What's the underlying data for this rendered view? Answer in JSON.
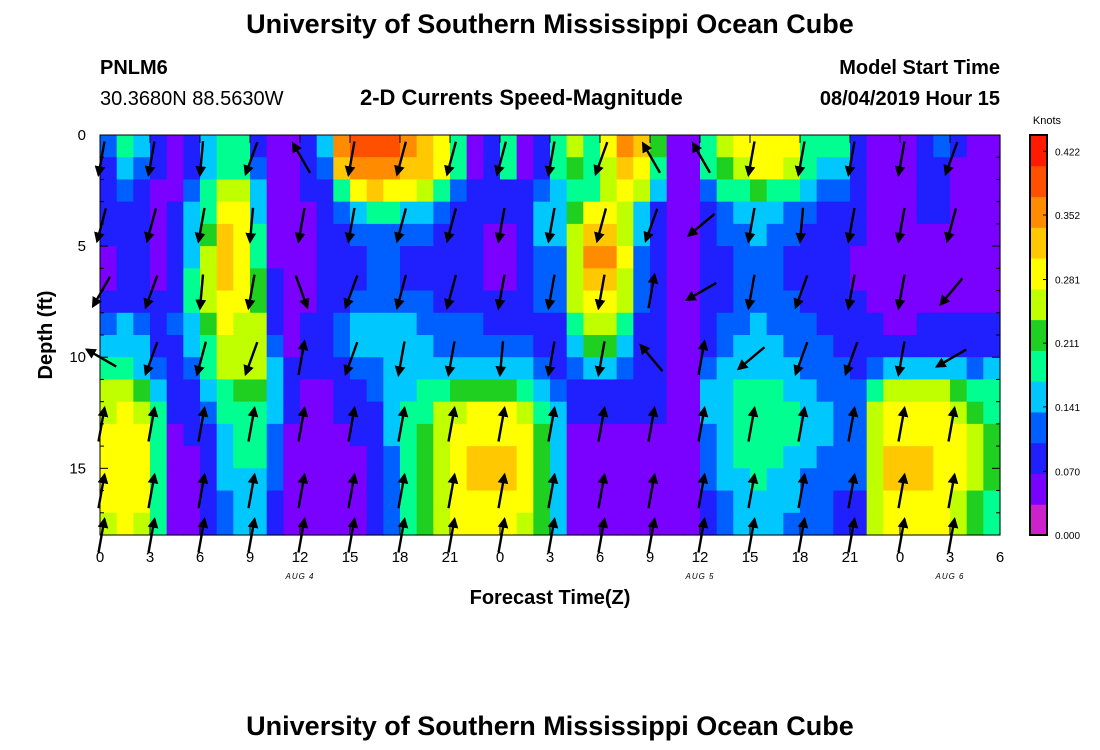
{
  "header": {
    "title": "University of Southern Mississippi Ocean Cube",
    "station_id": "PNLM6",
    "station_coords": "30.3680N 88.5630W",
    "subtitle": "2-D Currents Speed-Magnitude",
    "model_start_label": "Model Start Time",
    "model_start_value": "08/04/2019 Hour 15"
  },
  "footer": {
    "title": "University of Southern Mississippi Ocean Cube"
  },
  "chart_data": {
    "type": "heatmap",
    "title": "2-D Currents Speed-Magnitude",
    "xlabel": "Forecast Time(Z)",
    "ylabel": "Depth (ft)",
    "x_tick_labels": [
      "0",
      "3",
      "6",
      "9",
      "12",
      "15",
      "18",
      "21",
      "0",
      "3",
      "6",
      "9",
      "12",
      "15",
      "18",
      "21",
      "0",
      "3",
      "6"
    ],
    "x_range_hours": [
      0,
      54
    ],
    "date_labels": [
      {
        "text": "AUG 4",
        "hour": 12
      },
      {
        "text": "AUG 5",
        "hour": 36
      },
      {
        "text": "AUG 6",
        "hour": 51
      }
    ],
    "y_ticks": [
      0,
      5,
      10,
      15
    ],
    "y_range_ft": [
      0,
      18
    ],
    "y_inverted": true,
    "colorbar": {
      "unit_label": "Knots",
      "tick_labels": [
        "0.422",
        "0.352",
        "0.281",
        "0.211",
        "0.141",
        "0.070",
        "0.000"
      ],
      "range": [
        0,
        0.44
      ],
      "colors": [
        "#cc22cc",
        "#7a00ff",
        "#2020ff",
        "#0060ff",
        "#00c8ff",
        "#00ff90",
        "#20d020",
        "#c0ff00",
        "#ffff00",
        "#ffc800",
        "#ff8c00",
        "#ff5000",
        "#ff1a00"
      ]
    },
    "depth_rows": [
      0.5,
      1.5,
      2.5,
      3.5,
      4.5,
      5.5,
      6.5,
      7.5,
      8.5,
      9.5,
      10.5,
      11.5,
      12.5,
      13.5,
      14.5,
      15.5,
      16.5,
      17.5
    ],
    "speed_knots": [
      [
        0.12,
        0.2,
        0.14,
        0.08,
        0.05,
        0.1,
        0.14,
        0.18,
        0.18,
        0.1,
        0.06,
        0.04,
        0.1,
        0.15,
        0.35,
        0.38,
        0.4,
        0.4,
        0.36,
        0.33,
        0.3,
        0.2,
        0.06,
        0.08,
        0.2,
        0.06,
        0.1,
        0.2,
        0.25,
        0.2,
        0.3,
        0.35,
        0.33,
        0.22,
        0.06,
        0.05,
        0.2,
        0.25,
        0.28,
        0.3,
        0.3,
        0.3,
        0.2,
        0.18,
        0.18,
        0.1,
        0.06,
        0.05,
        0.05,
        0.1,
        0.12,
        0.07,
        0.06,
        0.05
      ],
      [
        0.1,
        0.15,
        0.12,
        0.07,
        0.05,
        0.1,
        0.15,
        0.18,
        0.18,
        0.12,
        0.06,
        0.04,
        0.08,
        0.12,
        0.32,
        0.35,
        0.36,
        0.36,
        0.33,
        0.31,
        0.28,
        0.18,
        0.06,
        0.07,
        0.18,
        0.06,
        0.1,
        0.18,
        0.22,
        0.18,
        0.26,
        0.32,
        0.3,
        0.2,
        0.06,
        0.05,
        0.18,
        0.23,
        0.26,
        0.28,
        0.28,
        0.27,
        0.18,
        0.16,
        0.16,
        0.09,
        0.06,
        0.05,
        0.05,
        0.09,
        0.1,
        0.06,
        0.05,
        0.05
      ],
      [
        0.08,
        0.12,
        0.1,
        0.06,
        0.06,
        0.12,
        0.17,
        0.25,
        0.25,
        0.14,
        0.05,
        0.04,
        0.07,
        0.1,
        0.2,
        0.3,
        0.32,
        0.3,
        0.28,
        0.25,
        0.2,
        0.12,
        0.07,
        0.08,
        0.1,
        0.07,
        0.12,
        0.15,
        0.2,
        0.2,
        0.24,
        0.28,
        0.24,
        0.16,
        0.06,
        0.05,
        0.12,
        0.18,
        0.2,
        0.22,
        0.2,
        0.18,
        0.14,
        0.13,
        0.12,
        0.08,
        0.06,
        0.05,
        0.05,
        0.08,
        0.08,
        0.06,
        0.05,
        0.05
      ],
      [
        0.07,
        0.1,
        0.09,
        0.06,
        0.07,
        0.14,
        0.2,
        0.3,
        0.3,
        0.16,
        0.05,
        0.04,
        0.06,
        0.08,
        0.12,
        0.16,
        0.18,
        0.18,
        0.16,
        0.14,
        0.12,
        0.09,
        0.07,
        0.07,
        0.07,
        0.08,
        0.14,
        0.14,
        0.22,
        0.28,
        0.3,
        0.24,
        0.16,
        0.1,
        0.06,
        0.05,
        0.09,
        0.13,
        0.14,
        0.16,
        0.14,
        0.12,
        0.11,
        0.1,
        0.09,
        0.07,
        0.06,
        0.05,
        0.05,
        0.07,
        0.07,
        0.05,
        0.05,
        0.05
      ],
      [
        0.07,
        0.09,
        0.08,
        0.06,
        0.08,
        0.15,
        0.22,
        0.32,
        0.3,
        0.18,
        0.05,
        0.04,
        0.06,
        0.07,
        0.09,
        0.12,
        0.13,
        0.13,
        0.12,
        0.11,
        0.1,
        0.08,
        0.07,
        0.06,
        0.06,
        0.08,
        0.14,
        0.14,
        0.25,
        0.32,
        0.32,
        0.26,
        0.14,
        0.09,
        0.06,
        0.05,
        0.08,
        0.11,
        0.12,
        0.14,
        0.12,
        0.11,
        0.1,
        0.09,
        0.08,
        0.07,
        0.06,
        0.05,
        0.05,
        0.06,
        0.06,
        0.05,
        0.05,
        0.05
      ],
      [
        0.06,
        0.08,
        0.08,
        0.06,
        0.08,
        0.16,
        0.24,
        0.33,
        0.3,
        0.2,
        0.06,
        0.04,
        0.06,
        0.07,
        0.08,
        0.1,
        0.11,
        0.11,
        0.1,
        0.1,
        0.09,
        0.08,
        0.07,
        0.06,
        0.06,
        0.08,
        0.13,
        0.13,
        0.27,
        0.34,
        0.34,
        0.28,
        0.13,
        0.08,
        0.06,
        0.05,
        0.07,
        0.1,
        0.11,
        0.12,
        0.11,
        0.1,
        0.09,
        0.08,
        0.08,
        0.06,
        0.05,
        0.05,
        0.04,
        0.05,
        0.05,
        0.05,
        0.05,
        0.05
      ],
      [
        0.06,
        0.08,
        0.08,
        0.06,
        0.09,
        0.17,
        0.25,
        0.32,
        0.3,
        0.22,
        0.07,
        0.05,
        0.06,
        0.07,
        0.08,
        0.1,
        0.11,
        0.11,
        0.1,
        0.1,
        0.09,
        0.08,
        0.07,
        0.06,
        0.06,
        0.08,
        0.12,
        0.12,
        0.27,
        0.33,
        0.33,
        0.27,
        0.12,
        0.08,
        0.06,
        0.05,
        0.07,
        0.1,
        0.11,
        0.12,
        0.11,
        0.1,
        0.09,
        0.08,
        0.07,
        0.06,
        0.05,
        0.05,
        0.04,
        0.05,
        0.05,
        0.05,
        0.05,
        0.05
      ],
      [
        0.08,
        0.1,
        0.09,
        0.07,
        0.1,
        0.17,
        0.25,
        0.3,
        0.28,
        0.23,
        0.08,
        0.05,
        0.06,
        0.07,
        0.1,
        0.11,
        0.12,
        0.12,
        0.12,
        0.11,
        0.1,
        0.1,
        0.09,
        0.08,
        0.08,
        0.09,
        0.11,
        0.11,
        0.24,
        0.3,
        0.3,
        0.24,
        0.11,
        0.08,
        0.06,
        0.05,
        0.08,
        0.1,
        0.12,
        0.13,
        0.12,
        0.11,
        0.1,
        0.09,
        0.08,
        0.07,
        0.05,
        0.05,
        0.04,
        0.05,
        0.05,
        0.05,
        0.05,
        0.05
      ],
      [
        0.12,
        0.14,
        0.12,
        0.08,
        0.11,
        0.16,
        0.23,
        0.28,
        0.27,
        0.24,
        0.1,
        0.06,
        0.07,
        0.08,
        0.12,
        0.14,
        0.14,
        0.14,
        0.14,
        0.13,
        0.12,
        0.12,
        0.11,
        0.1,
        0.1,
        0.1,
        0.1,
        0.1,
        0.2,
        0.26,
        0.26,
        0.2,
        0.1,
        0.08,
        0.06,
        0.05,
        0.09,
        0.11,
        0.13,
        0.14,
        0.13,
        0.12,
        0.11,
        0.1,
        0.09,
        0.08,
        0.07,
        0.06,
        0.06,
        0.07,
        0.07,
        0.07,
        0.07,
        0.08
      ],
      [
        0.14,
        0.16,
        0.14,
        0.1,
        0.1,
        0.14,
        0.2,
        0.26,
        0.26,
        0.24,
        0.12,
        0.06,
        0.07,
        0.08,
        0.12,
        0.14,
        0.15,
        0.15,
        0.15,
        0.14,
        0.13,
        0.13,
        0.12,
        0.12,
        0.12,
        0.11,
        0.1,
        0.1,
        0.16,
        0.22,
        0.22,
        0.16,
        0.1,
        0.08,
        0.06,
        0.05,
        0.1,
        0.12,
        0.14,
        0.15,
        0.14,
        0.13,
        0.12,
        0.11,
        0.1,
        0.09,
        0.08,
        0.08,
        0.08,
        0.09,
        0.09,
        0.09,
        0.09,
        0.1
      ],
      [
        0.18,
        0.18,
        0.16,
        0.12,
        0.1,
        0.13,
        0.18,
        0.24,
        0.24,
        0.24,
        0.14,
        0.07,
        0.07,
        0.07,
        0.1,
        0.12,
        0.13,
        0.14,
        0.15,
        0.16,
        0.16,
        0.16,
        0.15,
        0.15,
        0.15,
        0.14,
        0.12,
        0.1,
        0.12,
        0.16,
        0.16,
        0.12,
        0.1,
        0.08,
        0.06,
        0.05,
        0.12,
        0.14,
        0.15,
        0.16,
        0.15,
        0.14,
        0.13,
        0.12,
        0.11,
        0.1,
        0.13,
        0.15,
        0.15,
        0.16,
        0.16,
        0.15,
        0.13,
        0.14
      ],
      [
        0.24,
        0.26,
        0.22,
        0.16,
        0.08,
        0.1,
        0.14,
        0.2,
        0.22,
        0.22,
        0.15,
        0.08,
        0.06,
        0.06,
        0.08,
        0.1,
        0.12,
        0.14,
        0.16,
        0.18,
        0.2,
        0.22,
        0.22,
        0.22,
        0.22,
        0.2,
        0.16,
        0.12,
        0.08,
        0.1,
        0.1,
        0.09,
        0.08,
        0.07,
        0.06,
        0.06,
        0.14,
        0.16,
        0.17,
        0.18,
        0.17,
        0.16,
        0.14,
        0.13,
        0.12,
        0.12,
        0.2,
        0.24,
        0.24,
        0.24,
        0.24,
        0.22,
        0.2,
        0.18
      ],
      [
        0.26,
        0.28,
        0.26,
        0.18,
        0.07,
        0.08,
        0.12,
        0.18,
        0.2,
        0.2,
        0.14,
        0.07,
        0.05,
        0.05,
        0.07,
        0.08,
        0.1,
        0.14,
        0.17,
        0.2,
        0.24,
        0.26,
        0.28,
        0.28,
        0.28,
        0.26,
        0.2,
        0.14,
        0.07,
        0.07,
        0.07,
        0.07,
        0.07,
        0.07,
        0.06,
        0.06,
        0.14,
        0.16,
        0.18,
        0.19,
        0.18,
        0.17,
        0.15,
        0.14,
        0.13,
        0.12,
        0.24,
        0.28,
        0.28,
        0.28,
        0.28,
        0.26,
        0.22,
        0.2
      ],
      [
        0.28,
        0.3,
        0.28,
        0.2,
        0.06,
        0.07,
        0.1,
        0.16,
        0.18,
        0.18,
        0.13,
        0.06,
        0.05,
        0.05,
        0.06,
        0.07,
        0.09,
        0.14,
        0.18,
        0.21,
        0.26,
        0.28,
        0.3,
        0.3,
        0.3,
        0.28,
        0.22,
        0.15,
        0.06,
        0.06,
        0.06,
        0.06,
        0.06,
        0.06,
        0.06,
        0.06,
        0.13,
        0.16,
        0.18,
        0.19,
        0.18,
        0.17,
        0.15,
        0.14,
        0.13,
        0.12,
        0.26,
        0.3,
        0.3,
        0.3,
        0.3,
        0.28,
        0.24,
        0.21
      ],
      [
        0.28,
        0.3,
        0.28,
        0.2,
        0.06,
        0.06,
        0.09,
        0.15,
        0.17,
        0.17,
        0.12,
        0.06,
        0.05,
        0.05,
        0.05,
        0.06,
        0.08,
        0.13,
        0.18,
        0.22,
        0.27,
        0.29,
        0.31,
        0.31,
        0.31,
        0.29,
        0.23,
        0.15,
        0.06,
        0.05,
        0.05,
        0.05,
        0.05,
        0.06,
        0.06,
        0.06,
        0.12,
        0.15,
        0.17,
        0.18,
        0.17,
        0.16,
        0.14,
        0.13,
        0.12,
        0.12,
        0.27,
        0.31,
        0.31,
        0.31,
        0.3,
        0.28,
        0.24,
        0.21
      ],
      [
        0.28,
        0.3,
        0.28,
        0.2,
        0.05,
        0.06,
        0.08,
        0.14,
        0.16,
        0.16,
        0.11,
        0.05,
        0.04,
        0.04,
        0.05,
        0.06,
        0.08,
        0.13,
        0.18,
        0.22,
        0.27,
        0.29,
        0.31,
        0.31,
        0.31,
        0.29,
        0.23,
        0.15,
        0.05,
        0.05,
        0.05,
        0.05,
        0.05,
        0.05,
        0.06,
        0.06,
        0.11,
        0.14,
        0.16,
        0.17,
        0.16,
        0.15,
        0.13,
        0.12,
        0.11,
        0.11,
        0.27,
        0.31,
        0.31,
        0.31,
        0.3,
        0.28,
        0.24,
        0.21
      ],
      [
        0.28,
        0.3,
        0.28,
        0.2,
        0.05,
        0.05,
        0.08,
        0.13,
        0.15,
        0.15,
        0.1,
        0.05,
        0.04,
        0.04,
        0.05,
        0.06,
        0.08,
        0.13,
        0.18,
        0.22,
        0.27,
        0.29,
        0.3,
        0.3,
        0.3,
        0.28,
        0.22,
        0.14,
        0.05,
        0.04,
        0.04,
        0.04,
        0.04,
        0.05,
        0.06,
        0.06,
        0.1,
        0.13,
        0.15,
        0.16,
        0.15,
        0.14,
        0.12,
        0.11,
        0.1,
        0.1,
        0.26,
        0.3,
        0.3,
        0.3,
        0.29,
        0.27,
        0.23,
        0.2
      ],
      [
        0.27,
        0.29,
        0.27,
        0.19,
        0.05,
        0.05,
        0.07,
        0.12,
        0.14,
        0.14,
        0.1,
        0.05,
        0.04,
        0.04,
        0.05,
        0.06,
        0.08,
        0.12,
        0.17,
        0.21,
        0.26,
        0.28,
        0.29,
        0.29,
        0.29,
        0.27,
        0.21,
        0.14,
        0.05,
        0.04,
        0.04,
        0.04,
        0.04,
        0.05,
        0.06,
        0.06,
        0.1,
        0.12,
        0.14,
        0.15,
        0.14,
        0.13,
        0.12,
        0.11,
        0.1,
        0.1,
        0.25,
        0.29,
        0.29,
        0.29,
        0.28,
        0.26,
        0.22,
        0.19
      ]
    ],
    "arrow_times_hours": [
      0,
      3,
      6,
      9,
      12,
      15,
      18,
      21,
      24,
      27,
      30,
      33,
      36,
      39,
      42,
      45,
      48,
      51
    ],
    "arrow_depths_ft": [
      0.5,
      3.5,
      6.5,
      9.5,
      12.5,
      15.5,
      17.5
    ],
    "arrow_dir_deg": [
      [
        190,
        190,
        185,
        200,
        330,
        190,
        195,
        195,
        195,
        190,
        200,
        330,
        330,
        190,
        190,
        190,
        190,
        200
      ],
      [
        195,
        195,
        190,
        185,
        190,
        190,
        195,
        195,
        190,
        190,
        195,
        200,
        230,
        190,
        185,
        190,
        190,
        195
      ],
      [
        210,
        200,
        185,
        190,
        160,
        200,
        195,
        195,
        190,
        190,
        190,
        10,
        240,
        190,
        200,
        190,
        190,
        220
      ],
      [
        300,
        200,
        195,
        200,
        10,
        200,
        190,
        190,
        185,
        190,
        190,
        320,
        10,
        230,
        200,
        200,
        190,
        240
      ],
      [
        10,
        10,
        10,
        10,
        10,
        10,
        10,
        10,
        10,
        10,
        10,
        10,
        10,
        10,
        10,
        10,
        10,
        10
      ],
      [
        10,
        10,
        10,
        10,
        10,
        10,
        10,
        10,
        10,
        10,
        10,
        10,
        10,
        10,
        10,
        10,
        10,
        10
      ],
      [
        10,
        10,
        10,
        10,
        10,
        10,
        10,
        10,
        10,
        10,
        10,
        10,
        10,
        10,
        10,
        10,
        10,
        10
      ]
    ]
  }
}
